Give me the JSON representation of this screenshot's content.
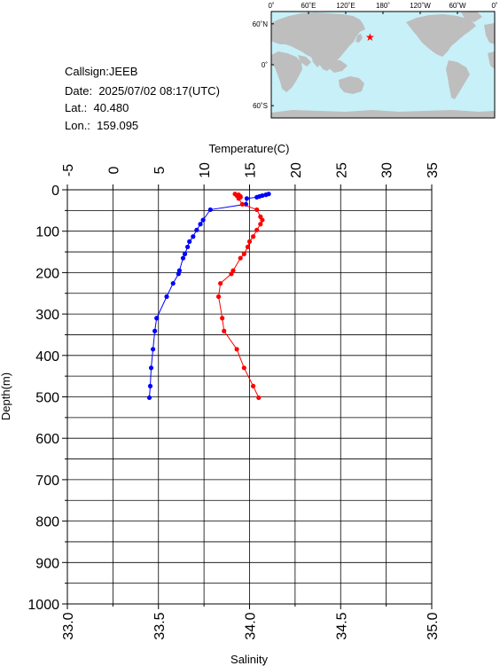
{
  "station": {
    "callsign_label": "Callsign:",
    "callsign": "JEEB",
    "date_label": "Date:",
    "date": "2025/07/02 08:17(UTC)",
    "lat_label": "Lat.:",
    "lat": "40.480",
    "lon_label": "Lon.:",
    "lon": "159.095"
  },
  "map": {
    "lon_labels": [
      "0˚",
      "60˚E",
      "120˚E",
      "180˚",
      "120˚W",
      "60˚W",
      "0˚"
    ],
    "lat_labels": [
      "60˚N",
      "0˚",
      "60˚S"
    ],
    "marker_lon": 159.095,
    "marker_lat": 40.48,
    "ocean_color": "#c8f0f8",
    "land_color": "#bebebe",
    "marker_color": "#ff0000"
  },
  "chart_data": {
    "type": "line",
    "y_axis": {
      "label": "Depth(m)",
      "range": [
        0,
        1000
      ],
      "inverted": true,
      "ticks": [
        "0",
        "100",
        "200",
        "300",
        "400",
        "500",
        "600",
        "700",
        "800",
        "900",
        "1000"
      ]
    },
    "x_axis_top": {
      "label": "Temperature(C)",
      "range": [
        -5,
        35
      ],
      "ticks": [
        "-5",
        "0",
        "5",
        "10",
        "15",
        "20",
        "25",
        "30",
        "35"
      ]
    },
    "x_axis_bottom": {
      "label": "Salinity",
      "range": [
        33.0,
        35.0
      ],
      "ticks": [
        "33.0",
        "33.5",
        "34.0",
        "34.5",
        "35.0"
      ]
    },
    "grid": true,
    "series": [
      {
        "axis": "temperature",
        "color": "#0000ff",
        "points": [
          {
            "x": 17.1,
            "y": 10
          },
          {
            "x": 16.8,
            "y": 12
          },
          {
            "x": 16.4,
            "y": 14
          },
          {
            "x": 16.1,
            "y": 16
          },
          {
            "x": 15.8,
            "y": 18
          },
          {
            "x": 14.7,
            "y": 21
          },
          {
            "x": 14.6,
            "y": 35
          },
          {
            "x": 10.7,
            "y": 48
          },
          {
            "x": 9.9,
            "y": 73
          },
          {
            "x": 9.6,
            "y": 83
          },
          {
            "x": 9.2,
            "y": 97
          },
          {
            "x": 8.8,
            "y": 113
          },
          {
            "x": 8.4,
            "y": 125
          },
          {
            "x": 8.2,
            "y": 138
          },
          {
            "x": 7.9,
            "y": 155
          },
          {
            "x": 7.7,
            "y": 165
          },
          {
            "x": 7.3,
            "y": 195
          },
          {
            "x": 7.2,
            "y": 203
          },
          {
            "x": 6.6,
            "y": 226
          },
          {
            "x": 5.9,
            "y": 258
          },
          {
            "x": 4.8,
            "y": 310
          },
          {
            "x": 4.6,
            "y": 341
          },
          {
            "x": 4.4,
            "y": 385
          },
          {
            "x": 4.2,
            "y": 430
          },
          {
            "x": 4.1,
            "y": 474
          },
          {
            "x": 4.0,
            "y": 502
          }
        ]
      },
      {
        "axis": "salinity",
        "color": "#ff0000",
        "points": [
          {
            "x": 33.92,
            "y": 10
          },
          {
            "x": 33.94,
            "y": 12
          },
          {
            "x": 33.93,
            "y": 14
          },
          {
            "x": 33.95,
            "y": 16
          },
          {
            "x": 33.95,
            "y": 18
          },
          {
            "x": 33.94,
            "y": 21
          },
          {
            "x": 33.96,
            "y": 35
          },
          {
            "x": 34.04,
            "y": 48
          },
          {
            "x": 34.06,
            "y": 65
          },
          {
            "x": 34.07,
            "y": 73
          },
          {
            "x": 34.06,
            "y": 83
          },
          {
            "x": 34.04,
            "y": 97
          },
          {
            "x": 34.02,
            "y": 113
          },
          {
            "x": 34.0,
            "y": 125
          },
          {
            "x": 33.99,
            "y": 138
          },
          {
            "x": 33.97,
            "y": 155
          },
          {
            "x": 33.95,
            "y": 165
          },
          {
            "x": 33.91,
            "y": 195
          },
          {
            "x": 33.9,
            "y": 203
          },
          {
            "x": 33.84,
            "y": 226
          },
          {
            "x": 33.83,
            "y": 258
          },
          {
            "x": 33.85,
            "y": 310
          },
          {
            "x": 33.86,
            "y": 341
          },
          {
            "x": 33.93,
            "y": 385
          },
          {
            "x": 33.97,
            "y": 430
          },
          {
            "x": 34.02,
            "y": 474
          },
          {
            "x": 34.05,
            "y": 502
          }
        ]
      }
    ]
  }
}
